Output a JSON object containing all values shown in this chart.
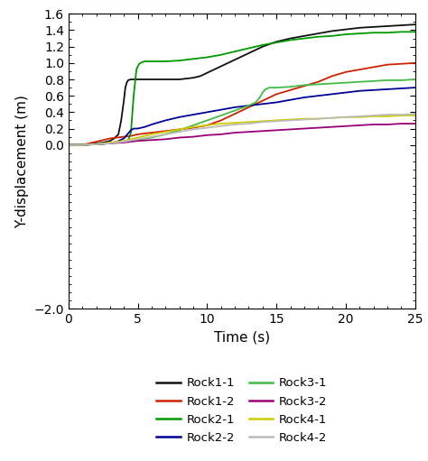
{
  "xlabel": "Time (s)",
  "ylabel": "Y-displacement (m)",
  "xlim": [
    0,
    25
  ],
  "ylim": [
    -2.0,
    1.6
  ],
  "yticks": [
    -2.0,
    0.0,
    0.2,
    0.4,
    0.6,
    0.8,
    1.0,
    1.2,
    1.4,
    1.6
  ],
  "xticks": [
    0,
    5,
    10,
    15,
    20,
    25
  ],
  "series": {
    "Rock1-1": {
      "color": "#111111",
      "t": [
        0,
        0.5,
        1.0,
        1.5,
        2.0,
        2.5,
        3.0,
        3.3,
        3.6,
        3.8,
        4.0,
        4.1,
        4.2,
        4.3,
        4.5,
        5.0,
        6.0,
        7.0,
        8.0,
        9.0,
        9.5,
        10.0,
        10.5,
        11.0,
        11.5,
        12.0,
        12.5,
        13.0,
        13.5,
        14.0,
        15.0,
        16.0,
        17.0,
        18.0,
        19.0,
        20.0,
        21.0,
        22.0,
        23.0,
        24.0,
        25.0
      ],
      "y": [
        0,
        0.0,
        0.0,
        0.01,
        0.02,
        0.03,
        0.05,
        0.08,
        0.13,
        0.3,
        0.55,
        0.7,
        0.76,
        0.79,
        0.8,
        0.8,
        0.8,
        0.8,
        0.8,
        0.82,
        0.84,
        0.88,
        0.92,
        0.96,
        1.0,
        1.04,
        1.08,
        1.12,
        1.16,
        1.2,
        1.26,
        1.3,
        1.33,
        1.36,
        1.39,
        1.41,
        1.43,
        1.44,
        1.45,
        1.46,
        1.47
      ]
    },
    "Rock1-2": {
      "color": "#cc2200",
      "t": [
        0,
        1.0,
        1.5,
        2.0,
        2.5,
        3.0,
        3.5,
        4.0,
        4.5,
        5.0,
        5.5,
        6.0,
        7.0,
        8.0,
        9.0,
        10.0,
        11.0,
        12.0,
        13.0,
        14.0,
        15.0,
        16.0,
        17.0,
        18.0,
        19.0,
        20.0,
        21.0,
        22.0,
        23.0,
        24.0,
        25.0
      ],
      "y": [
        0,
        0.0,
        0.02,
        0.04,
        0.06,
        0.08,
        0.09,
        0.1,
        0.11,
        0.13,
        0.14,
        0.15,
        0.17,
        0.19,
        0.21,
        0.24,
        0.3,
        0.38,
        0.46,
        0.54,
        0.62,
        0.67,
        0.72,
        0.77,
        0.84,
        0.89,
        0.92,
        0.95,
        0.98,
        0.99,
        1.0
      ]
    },
    "Rock2-1": {
      "color": "#009900",
      "t": [
        0,
        1.0,
        2.0,
        3.0,
        3.5,
        4.0,
        4.3,
        4.5,
        4.7,
        4.9,
        5.0,
        5.1,
        5.3,
        5.5,
        5.7,
        6.0,
        7.0,
        8.0,
        9.0,
        10.0,
        11.0,
        12.0,
        13.0,
        14.0,
        15.0,
        16.0,
        17.0,
        18.0,
        19.0,
        20.0,
        21.0,
        22.0,
        23.0,
        24.0,
        25.0
      ],
      "y": [
        0,
        0.0,
        0.01,
        0.02,
        0.03,
        0.04,
        0.05,
        0.15,
        0.6,
        0.92,
        0.96,
        0.99,
        1.01,
        1.02,
        1.02,
        1.02,
        1.02,
        1.03,
        1.05,
        1.07,
        1.1,
        1.14,
        1.18,
        1.22,
        1.25,
        1.28,
        1.3,
        1.32,
        1.33,
        1.35,
        1.36,
        1.37,
        1.37,
        1.38,
        1.38
      ]
    },
    "Rock2-2": {
      "color": "#000099",
      "t": [
        0,
        1.0,
        2.0,
        3.0,
        3.5,
        4.0,
        4.3,
        4.5,
        4.7,
        5.0,
        5.5,
        6.0,
        7.0,
        8.0,
        9.0,
        10.0,
        11.0,
        12.0,
        13.0,
        14.0,
        15.0,
        16.0,
        17.0,
        18.0,
        19.0,
        20.0,
        21.0,
        22.0,
        23.0,
        24.0,
        25.0
      ],
      "y": [
        0,
        0.0,
        0.01,
        0.02,
        0.04,
        0.08,
        0.14,
        0.18,
        0.2,
        0.2,
        0.22,
        0.25,
        0.3,
        0.34,
        0.37,
        0.4,
        0.43,
        0.46,
        0.48,
        0.5,
        0.52,
        0.55,
        0.58,
        0.6,
        0.62,
        0.64,
        0.66,
        0.67,
        0.68,
        0.69,
        0.7
      ]
    },
    "Rock3-1": {
      "color": "#44bb44",
      "t": [
        0,
        1.0,
        2.0,
        3.0,
        4.0,
        5.0,
        6.0,
        7.0,
        8.0,
        9.0,
        10.0,
        11.0,
        12.0,
        13.0,
        13.5,
        13.8,
        14.0,
        14.2,
        14.5,
        15.0,
        16.0,
        17.0,
        18.0,
        19.0,
        20.0,
        21.0,
        22.0,
        23.0,
        24.0,
        25.0
      ],
      "y": [
        0,
        0.0,
        0.01,
        0.02,
        0.04,
        0.06,
        0.09,
        0.13,
        0.18,
        0.24,
        0.3,
        0.36,
        0.42,
        0.48,
        0.52,
        0.58,
        0.64,
        0.68,
        0.7,
        0.7,
        0.71,
        0.73,
        0.74,
        0.75,
        0.76,
        0.77,
        0.78,
        0.79,
        0.79,
        0.8
      ]
    },
    "Rock3-2": {
      "color": "#990077",
      "t": [
        0,
        1.0,
        2.0,
        3.0,
        4.0,
        5.0,
        6.0,
        7.0,
        8.0,
        9.0,
        10.0,
        11.0,
        12.0,
        13.0,
        14.0,
        15.0,
        16.0,
        17.0,
        18.0,
        19.0,
        20.0,
        21.0,
        22.0,
        23.0,
        24.0,
        25.0
      ],
      "y": [
        0,
        0.0,
        0.01,
        0.02,
        0.03,
        0.05,
        0.06,
        0.07,
        0.09,
        0.1,
        0.12,
        0.13,
        0.15,
        0.16,
        0.17,
        0.18,
        0.19,
        0.2,
        0.21,
        0.22,
        0.23,
        0.24,
        0.25,
        0.25,
        0.26,
        0.26
      ]
    },
    "Rock4-1": {
      "color": "#cccc00",
      "t": [
        0,
        1.0,
        2.0,
        3.0,
        4.0,
        5.0,
        6.0,
        7.0,
        8.0,
        9.0,
        10.0,
        11.0,
        12.0,
        13.0,
        14.0,
        15.0,
        16.0,
        17.0,
        18.0,
        19.0,
        20.0,
        21.0,
        22.0,
        23.0,
        24.0,
        25.0
      ],
      "y": [
        0,
        0.0,
        0.01,
        0.03,
        0.05,
        0.09,
        0.13,
        0.16,
        0.19,
        0.22,
        0.24,
        0.26,
        0.27,
        0.28,
        0.29,
        0.3,
        0.31,
        0.32,
        0.32,
        0.33,
        0.34,
        0.34,
        0.35,
        0.35,
        0.36,
        0.36
      ]
    },
    "Rock4-2": {
      "color": "#bbbbbb",
      "t": [
        0,
        1.0,
        2.0,
        3.0,
        4.0,
        5.0,
        6.0,
        7.0,
        8.0,
        9.0,
        10.0,
        11.0,
        12.0,
        13.0,
        14.0,
        15.0,
        16.0,
        17.0,
        18.0,
        19.0,
        20.0,
        21.0,
        22.0,
        23.0,
        24.0,
        25.0
      ],
      "y": [
        0,
        0.0,
        0.01,
        0.02,
        0.04,
        0.07,
        0.1,
        0.13,
        0.16,
        0.19,
        0.21,
        0.23,
        0.25,
        0.26,
        0.28,
        0.29,
        0.3,
        0.31,
        0.32,
        0.33,
        0.34,
        0.35,
        0.36,
        0.37,
        0.37,
        0.38
      ]
    }
  },
  "legend_order": [
    "Rock1-1",
    "Rock1-2",
    "Rock2-1",
    "Rock2-2",
    "Rock3-1",
    "Rock3-2",
    "Rock4-1",
    "Rock4-2"
  ],
  "figsize": [
    4.74,
    5.11
  ],
  "dpi": 100
}
